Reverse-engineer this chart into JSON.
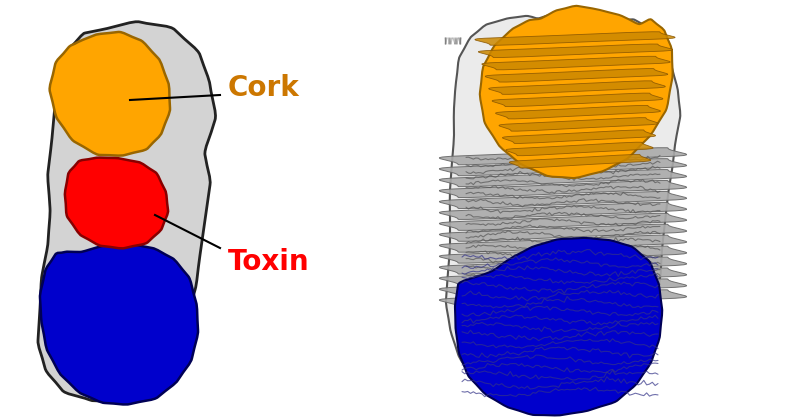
{
  "background_color": "#ffffff",
  "cork_color": "#FFA500",
  "toxin_color": "#FF0000",
  "blue_domain_color": "#0000CC",
  "cocoon_color": "#D3D3D3",
  "cocoon_edge_color": "#222222",
  "cork_label": "Cork",
  "cork_label_color": "#CC7700",
  "toxin_label": "Toxin",
  "toxin_label_color": "#FF0000",
  "cork_label_fontsize": 20,
  "toxin_label_fontsize": 20,
  "figsize": [
    8.0,
    4.19
  ],
  "dpi": 100,
  "ribbon_color": "#888888",
  "ribbon_edge": "#444444"
}
